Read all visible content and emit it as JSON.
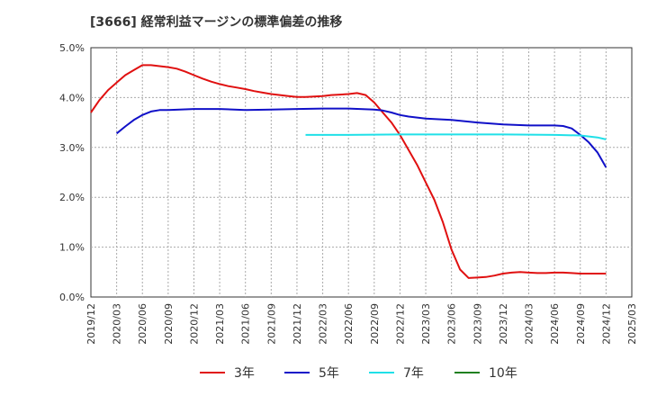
{
  "title": "[3666]  経常利益マージンの標準偏差の推移",
  "chart_data": {
    "type": "line",
    "title": "[3666]  経常利益マージンの標準偏差の推移",
    "x_ticks": [
      "2019/12",
      "2020/03",
      "2020/06",
      "2020/09",
      "2020/12",
      "2021/03",
      "2021/06",
      "2021/09",
      "2021/12",
      "2022/03",
      "2022/06",
      "2022/09",
      "2022/12",
      "2023/03",
      "2023/06",
      "2023/09",
      "2023/12",
      "2024/03",
      "2024/06",
      "2024/09",
      "2024/12",
      "2025/03"
    ],
    "y_ticks": [
      "0.0%",
      "1.0%",
      "2.0%",
      "3.0%",
      "4.0%",
      "5.0%"
    ],
    "ylim": [
      0,
      5
    ],
    "yunit": "%",
    "grid": true,
    "legend_position": "bottom",
    "series": [
      {
        "name": "3年",
        "color": "#e01010",
        "points": [
          [
            "2019/12",
            3.7
          ],
          [
            "2020/01",
            3.95
          ],
          [
            "2020/02",
            4.15
          ],
          [
            "2020/03",
            4.3
          ],
          [
            "2020/04",
            4.45
          ],
          [
            "2020/05",
            4.55
          ],
          [
            "2020/06",
            4.65
          ],
          [
            "2020/07",
            4.65
          ],
          [
            "2020/08",
            4.63
          ],
          [
            "2020/09",
            4.61
          ],
          [
            "2020/10",
            4.58
          ],
          [
            "2020/11",
            4.52
          ],
          [
            "2020/12",
            4.45
          ],
          [
            "2021/01",
            4.38
          ],
          [
            "2021/02",
            4.32
          ],
          [
            "2021/03",
            4.27
          ],
          [
            "2021/04",
            4.23
          ],
          [
            "2021/05",
            4.2
          ],
          [
            "2021/06",
            4.17
          ],
          [
            "2021/07",
            4.13
          ],
          [
            "2021/08",
            4.1
          ],
          [
            "2021/09",
            4.07
          ],
          [
            "2021/10",
            4.05
          ],
          [
            "2021/11",
            4.03
          ],
          [
            "2021/12",
            4.01
          ],
          [
            "2022/01",
            4.01
          ],
          [
            "2022/02",
            4.02
          ],
          [
            "2022/03",
            4.03
          ],
          [
            "2022/04",
            4.05
          ],
          [
            "2022/05",
            4.06
          ],
          [
            "2022/06",
            4.07
          ],
          [
            "2022/07",
            4.09
          ],
          [
            "2022/08",
            4.05
          ],
          [
            "2022/09",
            3.9
          ],
          [
            "2022/10",
            3.7
          ],
          [
            "2022/11",
            3.5
          ],
          [
            "2022/12",
            3.25
          ],
          [
            "2023/01",
            2.95
          ],
          [
            "2023/02",
            2.65
          ],
          [
            "2023/03",
            2.3
          ],
          [
            "2023/04",
            1.95
          ],
          [
            "2023/05",
            1.5
          ],
          [
            "2023/06",
            0.95
          ],
          [
            "2023/07",
            0.55
          ],
          [
            "2023/08",
            0.38
          ],
          [
            "2023/09",
            0.39
          ],
          [
            "2023/10",
            0.4
          ],
          [
            "2023/11",
            0.43
          ],
          [
            "2023/12",
            0.47
          ],
          [
            "2024/01",
            0.49
          ],
          [
            "2024/02",
            0.5
          ],
          [
            "2024/03",
            0.49
          ],
          [
            "2024/04",
            0.48
          ],
          [
            "2024/05",
            0.48
          ],
          [
            "2024/06",
            0.49
          ],
          [
            "2024/07",
            0.49
          ],
          [
            "2024/08",
            0.48
          ],
          [
            "2024/09",
            0.47
          ],
          [
            "2024/10",
            0.47
          ],
          [
            "2024/11",
            0.47
          ],
          [
            "2024/12",
            0.47
          ]
        ]
      },
      {
        "name": "5年",
        "color": "#1010c8",
        "points": [
          [
            "2020/03",
            3.28
          ],
          [
            "2020/04",
            3.42
          ],
          [
            "2020/05",
            3.55
          ],
          [
            "2020/06",
            3.65
          ],
          [
            "2020/07",
            3.72
          ],
          [
            "2020/08",
            3.75
          ],
          [
            "2020/09",
            3.75
          ],
          [
            "2020/12",
            3.77
          ],
          [
            "2021/03",
            3.77
          ],
          [
            "2021/06",
            3.75
          ],
          [
            "2021/09",
            3.76
          ],
          [
            "2021/12",
            3.77
          ],
          [
            "2022/03",
            3.78
          ],
          [
            "2022/06",
            3.78
          ],
          [
            "2022/09",
            3.76
          ],
          [
            "2022/10",
            3.74
          ],
          [
            "2022/11",
            3.7
          ],
          [
            "2022/12",
            3.65
          ],
          [
            "2023/01",
            3.62
          ],
          [
            "2023/02",
            3.6
          ],
          [
            "2023/03",
            3.58
          ],
          [
            "2023/06",
            3.55
          ],
          [
            "2023/09",
            3.5
          ],
          [
            "2023/12",
            3.46
          ],
          [
            "2024/03",
            3.44
          ],
          [
            "2024/06",
            3.44
          ],
          [
            "2024/07",
            3.43
          ],
          [
            "2024/08",
            3.38
          ],
          [
            "2024/09",
            3.25
          ],
          [
            "2024/10",
            3.1
          ],
          [
            "2024/11",
            2.9
          ],
          [
            "2024/12",
            2.6
          ]
        ]
      },
      {
        "name": "7年",
        "color": "#20e0e8",
        "points": [
          [
            "2022/01",
            3.25
          ],
          [
            "2022/06",
            3.25
          ],
          [
            "2022/12",
            3.26
          ],
          [
            "2023/06",
            3.26
          ],
          [
            "2023/12",
            3.26
          ],
          [
            "2024/06",
            3.25
          ],
          [
            "2024/09",
            3.24
          ],
          [
            "2024/10",
            3.22
          ],
          [
            "2024/11",
            3.2
          ],
          [
            "2024/12",
            3.16
          ]
        ]
      },
      {
        "name": "10年",
        "color": "#208020",
        "points": []
      }
    ]
  }
}
